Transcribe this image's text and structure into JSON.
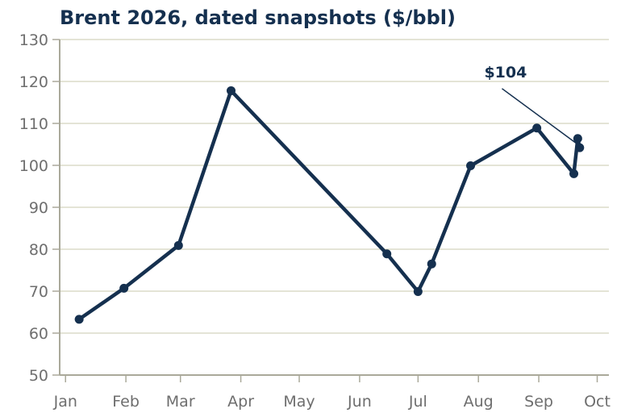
{
  "chart_data": {
    "type": "line",
    "title": "Brent 2026, dated snapshots ($/bbl)",
    "xlabel": "",
    "ylabel": "",
    "ylim": [
      50,
      130
    ],
    "yticks": [
      50,
      60,
      70,
      80,
      90,
      100,
      110,
      120,
      130
    ],
    "xlim": [
      "2025-12-29",
      "2026-10-07"
    ],
    "xticks": [
      {
        "date": "2026-01-01",
        "label": "Jan"
      },
      {
        "date": "2026-02-01",
        "label": "Feb"
      },
      {
        "date": "2026-03-01",
        "label": "Mar"
      },
      {
        "date": "2026-04-01",
        "label": "Apr"
      },
      {
        "date": "2026-05-01",
        "label": "May"
      },
      {
        "date": "2026-06-01",
        "label": "Jun"
      },
      {
        "date": "2026-07-01",
        "label": "Jul"
      },
      {
        "date": "2026-08-01",
        "label": "Aug"
      },
      {
        "date": "2026-09-01",
        "label": "Sep"
      },
      {
        "date": "2026-10-01",
        "label": "Oct"
      }
    ],
    "grid": {
      "y": true,
      "x": false
    },
    "series": [
      {
        "points": [
          {
            "x": "2026-01-08",
            "y": 63.3
          },
          {
            "x": "2026-01-31",
            "y": 70.7
          },
          {
            "x": "2026-02-28",
            "y": 80.9
          },
          {
            "x": "2026-03-27",
            "y": 117.8
          },
          {
            "x": "2026-06-15",
            "y": 78.9
          },
          {
            "x": "2026-07-01",
            "y": 69.9
          },
          {
            "x": "2026-07-08",
            "y": 76.5
          },
          {
            "x": "2026-07-28",
            "y": 99.9
          },
          {
            "x": "2026-08-31",
            "y": 108.9
          },
          {
            "x": "2026-09-19",
            "y": 98.0
          },
          {
            "x": "2026-09-21",
            "y": 106.4
          },
          {
            "x": "2026-09-22",
            "y": 104.2
          }
        ]
      }
    ],
    "annotation": {
      "text": "$104",
      "target": {
        "x": "2026-09-21",
        "y": 105.0
      },
      "text_at": {
        "x": "2026-08-04",
        "y": 121.0
      }
    },
    "colors": {
      "line": "#15304f",
      "grid": "#dcdcc8",
      "axis": "#aaa99a",
      "tick_text": "#6e6e6e",
      "title": "#15304f"
    }
  }
}
